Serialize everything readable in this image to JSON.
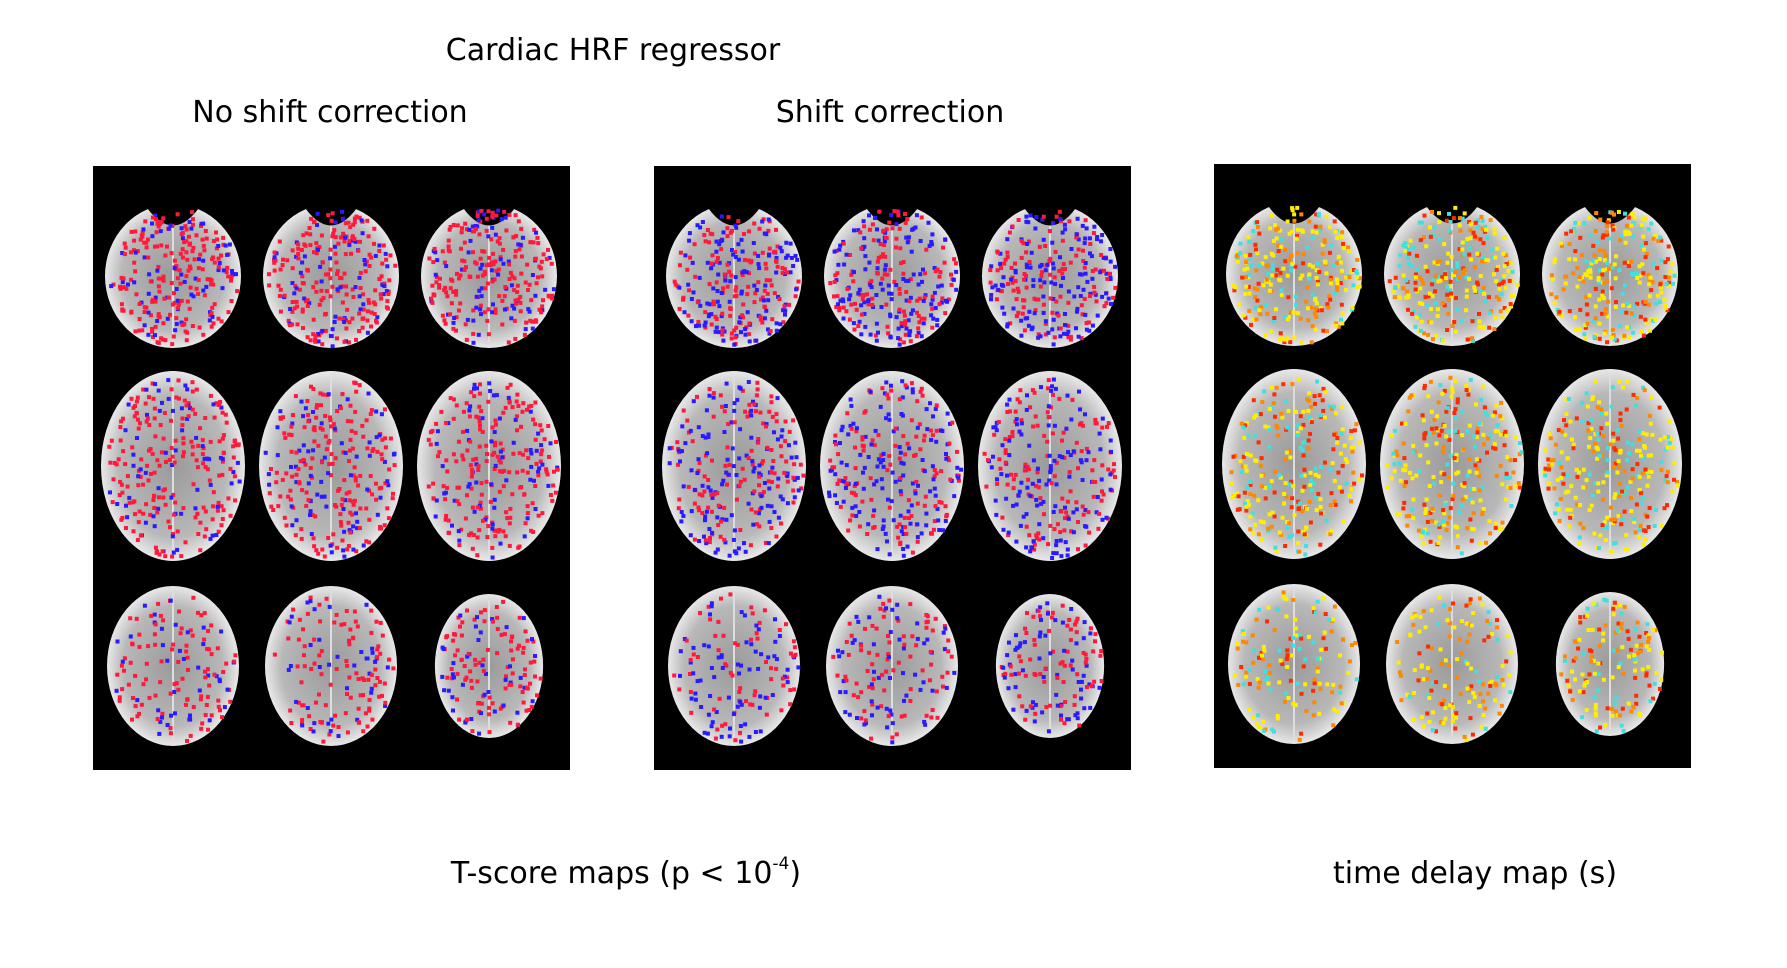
{
  "header": {
    "title": "Cardiac HRF regressor"
  },
  "panels": [
    {
      "heading": "No shift correction"
    },
    {
      "heading": "Shift correction"
    },
    {
      "heading": null
    }
  ],
  "captions": {
    "t_score": {
      "text": "T-score maps (p < 10",
      "superscript": "-4",
      "close": ")"
    },
    "time_delay": {
      "text": "time delay map (s)"
    }
  }
}
